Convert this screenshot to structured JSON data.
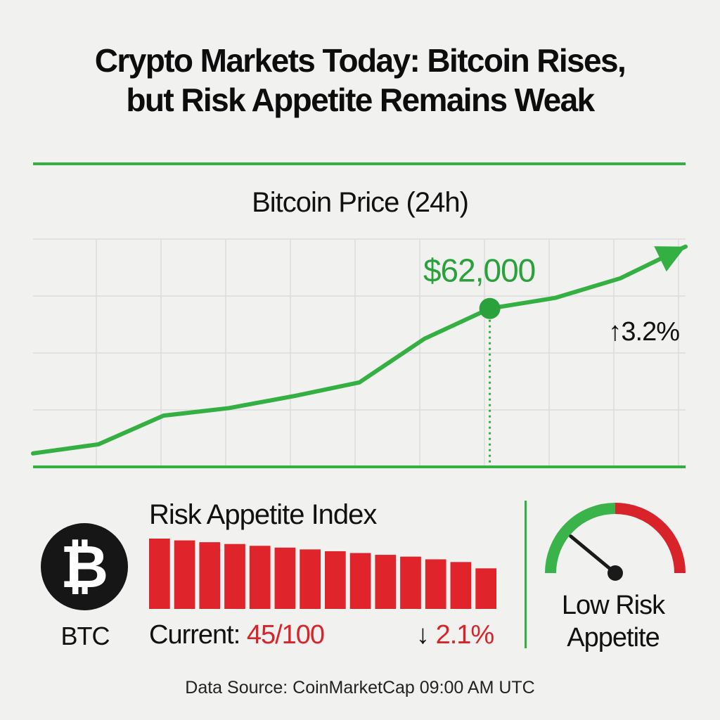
{
  "headline": {
    "line1": "Crypto Markets Today: Bitcoin Rises,",
    "line2": "but Risk Appetite Remains Weak"
  },
  "colors": {
    "accent_green": "#34b043",
    "accent_red": "#d8232a",
    "grid": "#dcdcdc",
    "background": "#f1f1f0"
  },
  "chart_data": [
    {
      "type": "line",
      "title": "Bitcoin Price (24h)",
      "grid": true,
      "x": [
        0,
        1,
        2,
        3,
        4,
        5,
        6,
        7,
        8,
        9,
        10
      ],
      "values": [
        0.08,
        0.14,
        0.33,
        0.38,
        0.46,
        0.55,
        0.84,
        1.04,
        1.11,
        1.24,
        1.45
      ],
      "highlight": {
        "index": 7,
        "label": "$62,000"
      },
      "change_label": "↑3.2%",
      "trend_arrow": true,
      "xlabel": "",
      "ylabel": ""
    },
    {
      "type": "bar",
      "title": "Risk Appetite Index",
      "values": [
        78,
        76,
        74,
        72,
        70,
        68,
        66,
        64,
        62,
        60,
        58,
        55,
        52,
        45
      ],
      "current_prefix": "Current: ",
      "current_value": "45/100",
      "change_arrow": "↓",
      "change_value": "2.1%"
    }
  ],
  "btc": {
    "symbol": "₿",
    "label": "BTC"
  },
  "gauge": {
    "icon": "gauge-icon",
    "level": 0.22,
    "label_line1": "Low Risk",
    "label_line2": "Appetite"
  },
  "footer": {
    "source": "Data Source: CoinMarketCap 09:00 AM UTC"
  }
}
